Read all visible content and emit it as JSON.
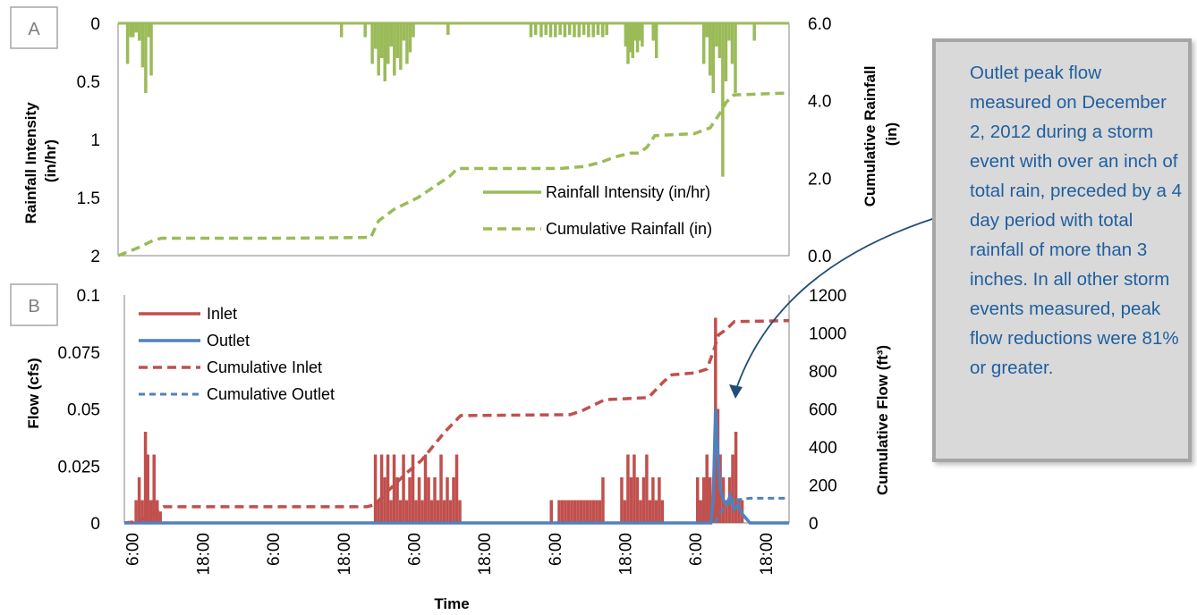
{
  "annotation": "Outlet peak flow measured on December 2, 2012 during a storm event with over an inch of total rain, preceded by a 4 day period with total rainfall of more than 3 inches. In all other storm events measured, peak flow reductions were 81% or greater.",
  "colors": {
    "rainfall": "#9bbb59",
    "inlet": "#c0504d",
    "outlet": "#4f81bd",
    "annotation_text": "#1f5f9f",
    "annotation_fill": "#d9d9d9",
    "annotation_border": "#a6a6a6"
  },
  "chart_data": [
    {
      "panel": "A",
      "type": "bar+line",
      "xlabel": "",
      "ylabel": "Rainfall Intensity (in/hr)",
      "ylabel_lines": [
        "Rainfall Intensity",
        "(in/hr)"
      ],
      "ylim": [
        0,
        2
      ],
      "y_inverted": true,
      "yticks": [
        "0",
        "0.5",
        "1",
        "1.5",
        "2"
      ],
      "y2label": "Cumulative Rainfall (in)",
      "y2label_lines": [
        "Cumulative Rainfall",
        "(in)"
      ],
      "y2lim": [
        0,
        6
      ],
      "y2ticks": [
        "0.0",
        "2.0",
        "4.0",
        "6.0"
      ],
      "x_unit": "hours after first 6:00 tick",
      "xlim": [
        -1,
        84
      ],
      "legend": "bottom-right",
      "grid": false,
      "series": [
        {
          "name": "Rainfall Intensity (in/hr)",
          "style": "solid-bars",
          "x": [
            0.2,
            0.6,
            0.9,
            1.3,
            1.7,
            2.1,
            2.5,
            2.9,
            3.2,
            27.3,
            30.3,
            31.2,
            31.6,
            32.0,
            32.4,
            32.8,
            33.2,
            33.6,
            34.0,
            34.4,
            34.8,
            35.2,
            35.6,
            36.0,
            36.4,
            40.8,
            51.3,
            51.9,
            52.6,
            53.2,
            53.8,
            54.4,
            55.0,
            55.6,
            56.2,
            56.8,
            57.4,
            58.0,
            58.6,
            59.2,
            59.8,
            60.4,
            60.9,
            63.3,
            63.6,
            63.9,
            64.2,
            64.5,
            64.8,
            65.1,
            65.4,
            66.8,
            67.2,
            73.2,
            73.6,
            74.0,
            74.4,
            74.8,
            75.2,
            75.6,
            76.0,
            76.4,
            76.8,
            77.2,
            79.6
          ],
          "values": [
            0.35,
            0.12,
            0.12,
            0.08,
            0.15,
            0.38,
            0.6,
            0.12,
            0.45,
            0.12,
            0.12,
            0.35,
            0.22,
            0.45,
            0.3,
            0.5,
            0.35,
            0.2,
            0.45,
            0.3,
            0.4,
            0.15,
            0.35,
            0.25,
            0.12,
            0.1,
            0.12,
            0.1,
            0.12,
            0.1,
            0.12,
            0.12,
            0.1,
            0.12,
            0.1,
            0.12,
            0.12,
            0.1,
            0.12,
            0.12,
            0.1,
            0.12,
            0.1,
            0.2,
            0.35,
            0.25,
            0.3,
            0.15,
            0.25,
            0.15,
            0.2,
            0.15,
            0.3,
            0.35,
            0.12,
            0.45,
            0.6,
            0.2,
            0.3,
            1.32,
            0.5,
            0.15,
            0.35,
            0.6,
            0.15
          ]
        },
        {
          "name": "Cumulative Rainfall (in)",
          "style": "dashed",
          "axis": "y2",
          "x": [
            -1,
            1.5,
            3.5,
            4.5,
            20,
            31,
            32,
            34,
            37,
            41,
            42,
            55,
            58,
            60,
            62,
            64,
            65,
            66,
            67,
            72,
            74,
            75.5,
            76,
            77,
            84
          ],
          "y": [
            0,
            0.2,
            0.4,
            0.45,
            0.45,
            0.47,
            0.9,
            1.2,
            1.5,
            2.05,
            2.25,
            2.25,
            2.3,
            2.4,
            2.55,
            2.65,
            2.65,
            2.8,
            3.1,
            3.15,
            3.3,
            3.75,
            3.95,
            4.15,
            4.2
          ]
        }
      ]
    },
    {
      "panel": "B",
      "type": "bar+line",
      "xlabel": "Time",
      "ylabel": "Flow (cfs)",
      "ylim": [
        0,
        0.1
      ],
      "yticks": [
        "0",
        "0.025",
        "0.05",
        "0.075",
        "0.1"
      ],
      "y2label": "Cumulative Flow (ft³)",
      "y2lim": [
        0,
        1200
      ],
      "y2ticks": [
        "0",
        "200",
        "400",
        "600",
        "800",
        "1000",
        "1200"
      ],
      "x_unit": "hours after first 6:00 tick",
      "xlim": [
        -1,
        84
      ],
      "xticks": [
        "6:00",
        "18:00",
        "6:00",
        "18:00",
        "6:00",
        "18:00",
        "6:00",
        "18:00",
        "6:00",
        "18:00"
      ],
      "xtick_hours": [
        0,
        9,
        18,
        27,
        36,
        45,
        54,
        63,
        72,
        81
      ],
      "legend": "top-left",
      "grid": false,
      "series": [
        {
          "name": "Inlet",
          "style": "solid-bars",
          "x": [
            0.5,
            0.9,
            1.3,
            1.7,
            2.0,
            2.4,
            2.8,
            3.2,
            3.6,
            31.1,
            31.5,
            31.9,
            32.3,
            32.7,
            33.1,
            33.5,
            33.9,
            34.3,
            34.7,
            35.1,
            35.5,
            35.9,
            36.3,
            36.7,
            37.1,
            37.5,
            37.9,
            38.3,
            38.7,
            39.1,
            39.5,
            39.9,
            40.3,
            40.7,
            41.1,
            41.5,
            41.9,
            53.6,
            54.6,
            55.0,
            55.4,
            55.8,
            56.2,
            56.6,
            57.0,
            57.4,
            57.8,
            58.2,
            58.6,
            59.0,
            59.4,
            59.8,
            60.2,
            62.6,
            63.0,
            63.4,
            63.8,
            64.2,
            64.6,
            65.0,
            65.4,
            65.8,
            66.2,
            66.6,
            67.0,
            67.4,
            67.8,
            72.3,
            72.7,
            73.1,
            73.5,
            73.9,
            74.3,
            74.6,
            74.9,
            75.2,
            75.6,
            76.0,
            76.4,
            76.8,
            77.2,
            77.6,
            78.0
          ],
          "values": [
            0.01,
            0.02,
            0.01,
            0.04,
            0.03,
            0.01,
            0.03,
            0.01,
            0.005,
            0.03,
            0.01,
            0.03,
            0.02,
            0.03,
            0.01,
            0.03,
            0.02,
            0.01,
            0.03,
            0.01,
            0.02,
            0.03,
            0.01,
            0.02,
            0.01,
            0.03,
            0.02,
            0.01,
            0.02,
            0.01,
            0.03,
            0.01,
            0.02,
            0.01,
            0.02,
            0.03,
            0.01,
            0.01,
            0.01,
            0.01,
            0.01,
            0.01,
            0.01,
            0.01,
            0.01,
            0.01,
            0.01,
            0.01,
            0.01,
            0.01,
            0.01,
            0.01,
            0.02,
            0.02,
            0.01,
            0.03,
            0.02,
            0.03,
            0.02,
            0.01,
            0.02,
            0.03,
            0.01,
            0.02,
            0.01,
            0.02,
            0.01,
            0.02,
            0.01,
            0.02,
            0.03,
            0.02,
            0.01,
            0.09,
            0.05,
            0.03,
            0.02,
            0.01,
            0.02,
            0.03,
            0.04,
            0.01,
            0.01
          ]
        },
        {
          "name": "Outlet",
          "style": "solid",
          "x": [
            -1,
            74.0,
            74.3,
            74.6,
            74.9,
            75.2,
            75.6,
            76.0,
            76.5,
            77.0,
            77.5,
            78.0,
            78.5,
            79.0,
            84
          ],
          "y": [
            0,
            0,
            0.01,
            0.05,
            0.03,
            0.015,
            0.01,
            0.008,
            0.012,
            0.006,
            0.008,
            0.004,
            0.002,
            0,
            0
          ]
        },
        {
          "name": "Cumulative Inlet",
          "style": "dashed",
          "axis": "y2",
          "x": [
            -1,
            0.3,
            2.0,
            3.0,
            4.0,
            30.0,
            31.0,
            33.0,
            35.0,
            37.0,
            40.0,
            42.0,
            56.0,
            57.5,
            59.0,
            60.5,
            61.0,
            66.0,
            68.0,
            69.0,
            72.0,
            73.5,
            74.3,
            75.0,
            76.0,
            77.0,
            84
          ],
          "y": [
            0,
            5,
            30,
            60,
            85,
            85,
            95,
            180,
            260,
            330,
            480,
            565,
            570,
            590,
            620,
            650,
            650,
            660,
            745,
            780,
            790,
            810,
            900,
            990,
            1020,
            1060,
            1065
          ]
        },
        {
          "name": "Cumulative Outlet",
          "style": "dashed",
          "axis": "y2",
          "x": [
            -1,
            74.5,
            75.2,
            76.0,
            77.0,
            79.0,
            84
          ],
          "y": [
            0,
            0,
            55,
            95,
            120,
            130,
            130
          ]
        }
      ]
    }
  ]
}
